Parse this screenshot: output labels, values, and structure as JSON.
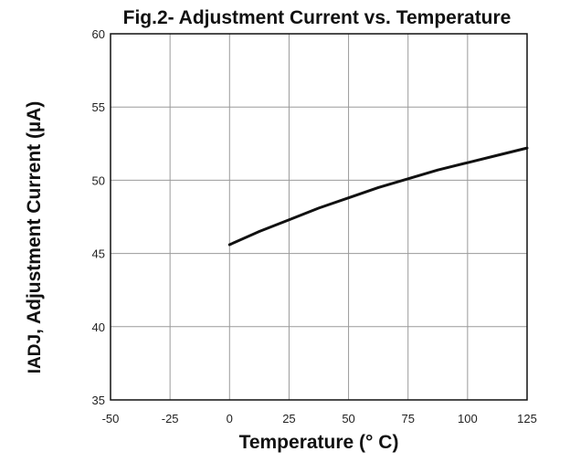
{
  "chart_data": {
    "type": "line",
    "title": "Fig.2- Adjustment Current vs. Temperature",
    "xlabel": "Temperature (° C)",
    "ylabel_prefix": "IADJ",
    "ylabel_rest": ", Adjustment Current (µA)",
    "xlim": [
      -50,
      125
    ],
    "ylim": [
      35,
      60
    ],
    "x_ticks": [
      -50,
      -25,
      0,
      25,
      50,
      75,
      100,
      125
    ],
    "y_ticks": [
      35,
      40,
      45,
      50,
      55,
      60
    ],
    "grid": true,
    "series": [
      {
        "x": [
          0,
          12.5,
          25,
          37.5,
          50,
          62.5,
          75,
          87.5,
          100,
          112.5,
          125
        ],
        "y": [
          45.6,
          46.5,
          47.3,
          48.1,
          48.8,
          49.5,
          50.1,
          50.7,
          51.2,
          51.7,
          52.2
        ],
        "color": "#111111"
      }
    ]
  }
}
